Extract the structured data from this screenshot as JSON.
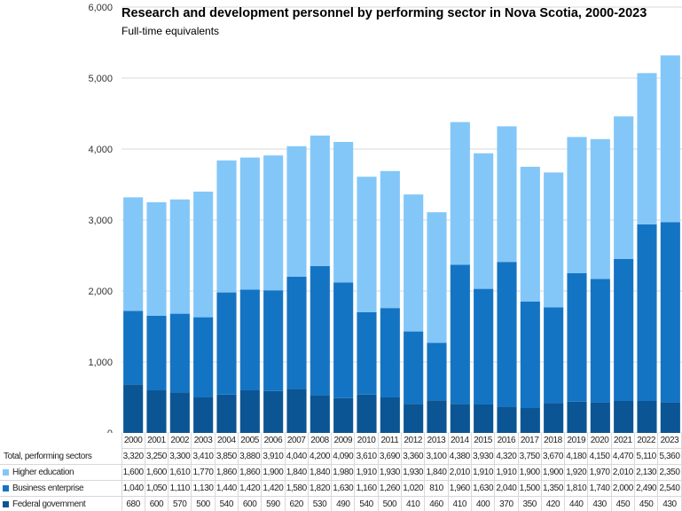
{
  "chart_data": {
    "type": "bar",
    "stacked": true,
    "title": "Research and development personnel  by performing sector in Nova Scotia, 2000-2023",
    "subtitle": "Full-time equivalents",
    "ylim": [
      0,
      6000
    ],
    "yticks": [
      "0",
      "1,000",
      "2,000",
      "3,000",
      "4,000",
      "5,000",
      "6,000"
    ],
    "ytick_values": [
      0,
      1000,
      2000,
      3000,
      4000,
      5000,
      6000
    ],
    "grid": true,
    "categories": [
      "2000",
      "2001",
      "2002",
      "2003",
      "2004",
      "2005",
      "2006",
      "2007",
      "2008",
      "2009",
      "2010",
      "2011",
      "2012",
      "2013",
      "2014",
      "2015",
      "2016",
      "2017",
      "2018",
      "2019",
      "2020",
      "2021",
      "2022",
      "2023"
    ],
    "total": {
      "name": "Total, performing sectors",
      "values": [
        3320,
        3250,
        3300,
        3410,
        3850,
        3880,
        3910,
        4040,
        4200,
        4090,
        3610,
        3690,
        3360,
        3100,
        4380,
        3930,
        4320,
        3750,
        3670,
        4180,
        4150,
        4470,
        5110,
        5360
      ]
    },
    "series": [
      {
        "name": "Federal government",
        "color": "#0b5594",
        "values": [
          680,
          600,
          570,
          500,
          540,
          600,
          590,
          620,
          530,
          490,
          540,
          500,
          410,
          460,
          410,
          400,
          370,
          350,
          420,
          440,
          430,
          450,
          450,
          430
        ]
      },
      {
        "name": "Business enterprise",
        "color": "#1474c4",
        "values": [
          1040,
          1050,
          1110,
          1130,
          1440,
          1420,
          1420,
          1580,
          1820,
          1630,
          1160,
          1260,
          1020,
          810,
          1960,
          1630,
          2040,
          1500,
          1350,
          1810,
          1740,
          2000,
          2490,
          2540
        ]
      },
      {
        "name": "Higher education",
        "color": "#83c7f8",
        "values": [
          1600,
          1600,
          1610,
          1770,
          1860,
          1860,
          1900,
          1840,
          1840,
          1980,
          1910,
          1930,
          1930,
          1840,
          2010,
          1910,
          1910,
          1900,
          1900,
          1920,
          1970,
          2010,
          2130,
          2350
        ]
      }
    ],
    "table_row_order": [
      "Higher education",
      "Business enterprise",
      "Federal government"
    ]
  }
}
